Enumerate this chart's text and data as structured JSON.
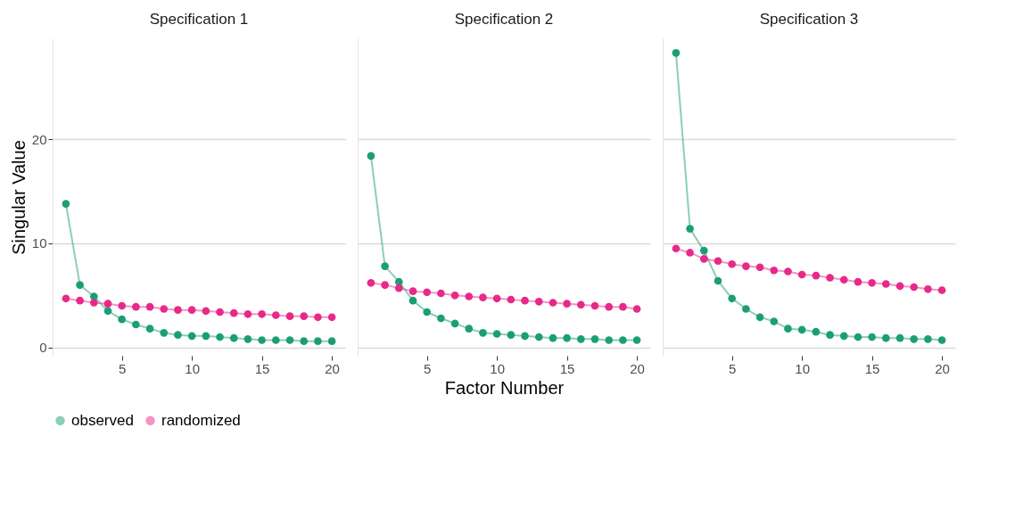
{
  "chart_data": [
    {
      "type": "line",
      "title": "Specification 1",
      "ylabel": "Singular Value",
      "x": [
        1,
        2,
        3,
        4,
        5,
        6,
        7,
        8,
        9,
        10,
        11,
        12,
        13,
        14,
        15,
        16,
        17,
        18,
        19,
        20
      ],
      "xlim": [
        0.05,
        20.95
      ],
      "ylim": [
        -0.8,
        29.7
      ],
      "xticks": [
        5,
        10,
        15,
        20
      ],
      "yticks": [
        0,
        10,
        20
      ],
      "grid": "y",
      "marker": "circle",
      "legend": "bottom",
      "series": [
        {
          "name": "observed",
          "color": "#1b9e77",
          "values": [
            13.8,
            6.0,
            4.9,
            3.5,
            2.7,
            2.2,
            1.8,
            1.4,
            1.2,
            1.1,
            1.1,
            1.0,
            0.9,
            0.8,
            0.7,
            0.7,
            0.7,
            0.6,
            0.6,
            0.6
          ]
        },
        {
          "name": "randomized",
          "color": "#e7298a",
          "values": [
            4.7,
            4.5,
            4.3,
            4.2,
            4.0,
            3.9,
            3.9,
            3.7,
            3.6,
            3.6,
            3.5,
            3.4,
            3.3,
            3.2,
            3.2,
            3.1,
            3.0,
            3.0,
            2.9,
            2.9
          ]
        }
      ]
    },
    {
      "type": "line",
      "title": "Specification 2",
      "xlabel": "Factor Number",
      "x": [
        1,
        2,
        3,
        4,
        5,
        6,
        7,
        8,
        9,
        10,
        11,
        12,
        13,
        14,
        15,
        16,
        17,
        18,
        19,
        20
      ],
      "xlim": [
        0.05,
        20.95
      ],
      "ylim": [
        -0.8,
        29.7
      ],
      "xticks": [
        5,
        10,
        15,
        20
      ],
      "yticks": [
        0,
        10,
        20
      ],
      "grid": "y",
      "marker": "circle",
      "tick_labels": "x",
      "legend": "bottom",
      "series": [
        {
          "name": "observed",
          "color": "#1b9e77",
          "values": [
            18.4,
            7.8,
            6.3,
            4.5,
            3.4,
            2.8,
            2.3,
            1.8,
            1.4,
            1.3,
            1.2,
            1.1,
            1.0,
            0.9,
            0.9,
            0.8,
            0.8,
            0.7,
            0.7,
            0.7
          ]
        },
        {
          "name": "randomized",
          "color": "#e7298a",
          "values": [
            6.2,
            6.0,
            5.7,
            5.4,
            5.3,
            5.2,
            5.0,
            4.9,
            4.8,
            4.7,
            4.6,
            4.5,
            4.4,
            4.3,
            4.2,
            4.1,
            4.0,
            3.9,
            3.9,
            3.7
          ]
        }
      ]
    },
    {
      "type": "line",
      "title": "Specification 3",
      "x": [
        1,
        2,
        3,
        4,
        5,
        6,
        7,
        8,
        9,
        10,
        11,
        12,
        13,
        14,
        15,
        16,
        17,
        18,
        19,
        20
      ],
      "xlim": [
        0.05,
        20.95
      ],
      "ylim": [
        -0.8,
        29.7
      ],
      "xticks": [
        5,
        10,
        15,
        20
      ],
      "yticks": [
        0,
        10,
        20
      ],
      "grid": "y",
      "marker": "circle",
      "tick_labels": "x",
      "legend": "bottom",
      "series": [
        {
          "name": "observed",
          "color": "#1b9e77",
          "values": [
            28.3,
            11.4,
            9.3,
            6.4,
            4.7,
            3.7,
            2.9,
            2.5,
            1.8,
            1.7,
            1.5,
            1.2,
            1.1,
            1.0,
            1.0,
            0.9,
            0.9,
            0.8,
            0.8,
            0.7
          ]
        },
        {
          "name": "randomized",
          "color": "#e7298a",
          "values": [
            9.5,
            9.1,
            8.5,
            8.3,
            8.0,
            7.8,
            7.7,
            7.4,
            7.3,
            7.0,
            6.9,
            6.7,
            6.5,
            6.3,
            6.2,
            6.1,
            5.9,
            5.8,
            5.6,
            5.5
          ]
        }
      ]
    }
  ]
}
